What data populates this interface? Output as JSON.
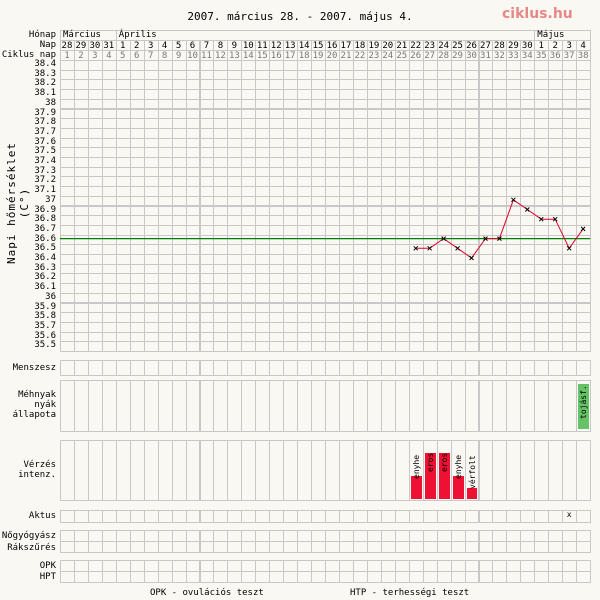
{
  "title": "2007. március 28. - 2007. május 4.",
  "logo": "ciklus.hu",
  "row_labels": {
    "month": "Hónap",
    "day": "Nap",
    "cycle": "Ciklus nap",
    "menses": "Menszesz",
    "cervix": [
      "Méhnyak",
      "nyák",
      "állapota"
    ],
    "bleeding": [
      "Vérzés",
      "intenz."
    ],
    "intercourse": "Aktus",
    "gyn": "Nőgyógyász",
    "pap": "Rákszűrés",
    "opk": "OPK",
    "hpt": "HPT"
  },
  "months": [
    {
      "label": "Március",
      "span": 4
    },
    {
      "label": "Április",
      "span": 30
    },
    {
      "label": "Május",
      "span": 4
    }
  ],
  "days": [
    "28",
    "29",
    "30",
    "31",
    "1",
    "2",
    "3",
    "4",
    "5",
    "6",
    "7",
    "8",
    "9",
    "10",
    "11",
    "12",
    "13",
    "14",
    "15",
    "16",
    "17",
    "18",
    "19",
    "20",
    "21",
    "22",
    "23",
    "24",
    "25",
    "26",
    "27",
    "28",
    "29",
    "30",
    "1",
    "2",
    "3",
    "4"
  ],
  "cycle_days": [
    "1",
    "2",
    "3",
    "4",
    "5",
    "6",
    "7",
    "8",
    "9",
    "10",
    "11",
    "12",
    "13",
    "14",
    "15",
    "16",
    "17",
    "18",
    "19",
    "20",
    "21",
    "22",
    "23",
    "24",
    "25",
    "26",
    "27",
    "28",
    "29",
    "30",
    "31",
    "32",
    "33",
    "34",
    "35",
    "36",
    "37",
    "38"
  ],
  "footer": {
    "opk": "OPK - ovulációs teszt",
    "hpt": "HTP - terhességi teszt"
  },
  "chart_data": {
    "type": "line",
    "ylabel": "Napi hőmérséklet (C°)",
    "yticks": [
      "38.4",
      "38.3",
      "38.2",
      "38.1",
      "38",
      "37.9",
      "37.8",
      "37.7",
      "37.6",
      "37.5",
      "37.4",
      "37.3",
      "37.2",
      "37.1",
      "37",
      "36.9",
      "36.8",
      "36.7",
      "36.6",
      "36.5",
      "36.4",
      "36.3",
      "36.2",
      "36.1",
      "36",
      "35.9",
      "35.8",
      "35.7",
      "35.6",
      "35.5"
    ],
    "ylim": [
      35.5,
      38.4
    ],
    "coverline": 36.6,
    "series": [
      {
        "x": [
          26,
          27,
          28,
          29,
          30,
          31,
          32,
          33,
          34,
          35,
          36,
          37,
          38
        ],
        "values": [
          36.5,
          36.5,
          36.6,
          36.5,
          36.4,
          36.6,
          36.6,
          37.0,
          36.9,
          36.8,
          36.8,
          36.5,
          36.7
        ]
      }
    ],
    "bleeding": [
      {
        "cycle_day": 26,
        "label": "enyhe",
        "level": 2
      },
      {
        "cycle_day": 27,
        "label": "eros",
        "level": 4
      },
      {
        "cycle_day": 28,
        "label": "eros",
        "level": 4
      },
      {
        "cycle_day": 29,
        "label": "enyhe",
        "level": 2
      },
      {
        "cycle_day": 30,
        "label": "vérfolt",
        "level": 1
      }
    ],
    "cervix": [
      {
        "cycle_day": 38,
        "label": "tojásf."
      }
    ],
    "intercourse": [
      {
        "cycle_day": 37,
        "label": "x"
      }
    ],
    "colors": {
      "line": "#e0002a",
      "coverline": "#008000",
      "bleeding": "#ee1133",
      "cervix": "#66c266",
      "grid": "#c8c8c8"
    }
  }
}
